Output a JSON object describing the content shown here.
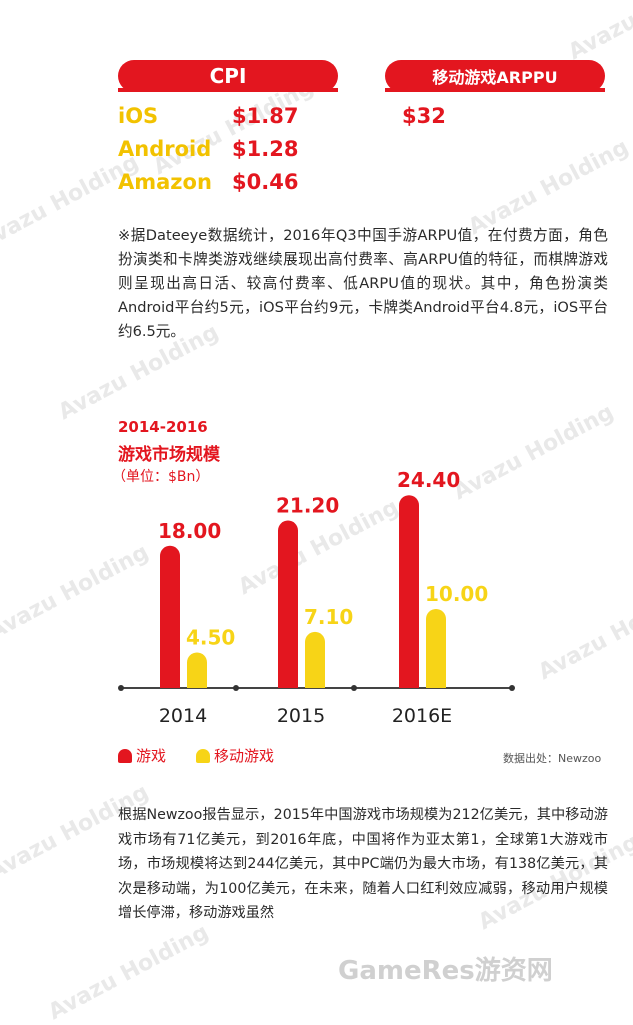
{
  "cpi": {
    "label": "CPI",
    "rows": [
      {
        "platform": "iOS",
        "value": "$1.87"
      },
      {
        "platform": "Android",
        "value": "$1.28"
      },
      {
        "platform": "Amazon",
        "value": "$0.46"
      }
    ]
  },
  "arppu": {
    "label": "移动游戏ARPPU",
    "value": "$32"
  },
  "note": "※据Dateeye数据统计，2016年Q3中国手游ARPU值，在付费方面，角色扮演类和卡牌类游戏继续展现出高付费率、高ARPU值的特征，而棋牌游戏则呈现出高日活、较高付费率、低ARPU值的现状。其中，角色扮演类Android平台约5元，iOS平台约9元，卡牌类Android平台4.8元，iOS平台约6.5元。",
  "chart_data": {
    "type": "bar",
    "title_line1": "2014-2016",
    "title_line2": "游戏市场规模",
    "unit": "（单位：$Bn）",
    "categories": [
      "2014",
      "2015",
      "2016E"
    ],
    "series": [
      {
        "name": "游戏",
        "values": [
          18.0,
          21.2,
          24.4
        ],
        "labels": [
          "18.00",
          "21.20",
          "24.40"
        ],
        "color": "#e3161f"
      },
      {
        "name": "移动游戏",
        "values": [
          4.5,
          7.1,
          10.0
        ],
        "labels": [
          "4.50",
          "7.10",
          "10.00"
        ],
        "color": "#f7d417"
      }
    ],
    "source": "数据出处：Newzoo"
  },
  "footer_text": "根据Newzoo报告显示，2015年中国游戏市场规模为212亿美元，其中移动游戏市场有71亿美元，到2016年底，中国将作为亚太第1，全球第1大游戏市场，市场规模将达到244亿美元，其中PC端仍为最大市场，有138亿美元，其次是移动端，为100亿美元，在未来，随着人口红利效应减弱，移动用户规模增长停滞，移动游戏虽然",
  "watermarks": {
    "brand": "Avazu Holding",
    "site": "GameRes游资网"
  },
  "colors": {
    "red": "#e3161f",
    "yellow": "#f7d417"
  }
}
